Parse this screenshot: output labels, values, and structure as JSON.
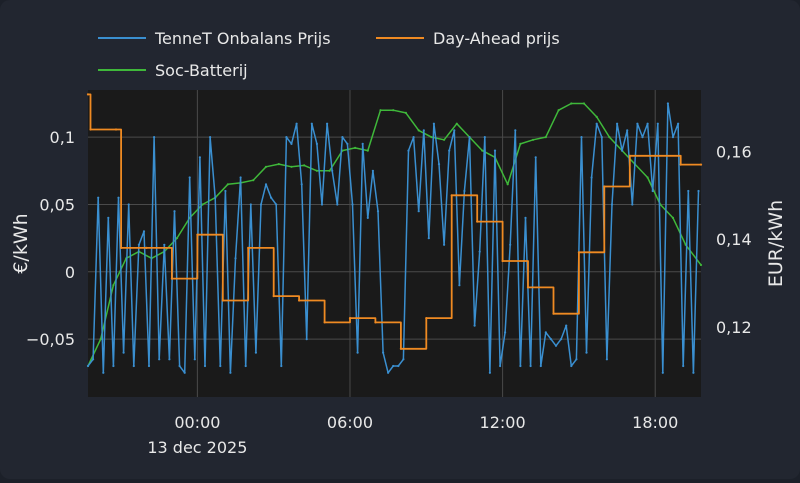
{
  "chart_data": {
    "type": "line",
    "legend": {
      "placement": "top",
      "entries": [
        {
          "name": "TenneT Onbalans Prijs",
          "color": "#3a8fd0"
        },
        {
          "name": "Day-Ahead prijs",
          "color": "#ef8a22"
        },
        {
          "name": "Soc-Batterij",
          "color": "#3fb83a"
        }
      ]
    },
    "x_axis": {
      "ticks": [
        "00:00",
        "06:00",
        "12:00",
        "18:00"
      ],
      "tick_hours": [
        0,
        6,
        12,
        18
      ],
      "date_label": "13 dec 2025",
      "range_hours": [
        -4.3,
        19.8
      ]
    },
    "y_left": {
      "label": "€/kWh",
      "ticks": [
        "0,1",
        "0,05",
        "0",
        "−0,05"
      ],
      "tick_values": [
        0.1,
        0.05,
        0,
        -0.05
      ],
      "range": [
        -0.093,
        0.135
      ]
    },
    "y_right": {
      "label": "EUR/kWh",
      "ticks": [
        "0,16",
        "0,14",
        "0,12"
      ],
      "tick_values": [
        0.16,
        0.14,
        0.12
      ],
      "range": [
        0.104,
        0.174
      ]
    },
    "grid": true,
    "series": [
      {
        "name": "Day-Ahead prijs",
        "axis": "right",
        "step": true,
        "color": "#ef8a22",
        "x": [
          -4.3,
          -4.2,
          -3.2,
          -3.0,
          -2.0,
          -1.0,
          0.0,
          1.0,
          2.0,
          3.0,
          4.0,
          5.0,
          6.0,
          7.0,
          8.0,
          9.0,
          10.0,
          11.0,
          12.0,
          13.0,
          14.0,
          15.0,
          16.0,
          17.0,
          18.0,
          19.0,
          19.8
        ],
        "y": [
          0.173,
          0.165,
          0.165,
          0.138,
          0.138,
          0.131,
          0.141,
          0.126,
          0.138,
          0.127,
          0.126,
          0.121,
          0.122,
          0.121,
          0.115,
          0.122,
          0.15,
          0.144,
          0.135,
          0.129,
          0.123,
          0.137,
          0.152,
          0.159,
          0.159,
          0.157,
          0.157
        ]
      },
      {
        "name": "Soc-Batterij",
        "axis": "left",
        "color": "#3fb83a",
        "x": [
          -4.3,
          -3.8,
          -3.3,
          -2.8,
          -2.3,
          -1.8,
          -1.3,
          -0.8,
          -0.3,
          0.2,
          0.7,
          1.2,
          1.7,
          2.2,
          2.7,
          3.2,
          3.7,
          4.2,
          4.7,
          5.2,
          5.7,
          6.2,
          6.7,
          7.2,
          7.7,
          8.2,
          8.7,
          9.2,
          9.7,
          10.2,
          10.7,
          11.2,
          11.7,
          12.2,
          12.7,
          13.2,
          13.7,
          14.2,
          14.7,
          15.2,
          15.7,
          16.2,
          16.7,
          17.2,
          17.7,
          18.2,
          18.7,
          19.2,
          19.8
        ],
        "y": [
          -0.07,
          -0.05,
          -0.01,
          0.01,
          0.015,
          0.01,
          0.015,
          0.025,
          0.04,
          0.05,
          0.055,
          0.065,
          0.066,
          0.068,
          0.078,
          0.08,
          0.078,
          0.079,
          0.075,
          0.075,
          0.09,
          0.092,
          0.09,
          0.12,
          0.12,
          0.118,
          0.105,
          0.1,
          0.098,
          0.11,
          0.1,
          0.09,
          0.085,
          0.065,
          0.095,
          0.098,
          0.1,
          0.12,
          0.125,
          0.125,
          0.115,
          0.1,
          0.09,
          0.08,
          0.07,
          0.05,
          0.04,
          0.02,
          0.005
        ]
      },
      {
        "name": "TenneT Onbalans Prijs",
        "axis": "left",
        "color": "#3a8fd0",
        "x": [
          -4.3,
          -4.1,
          -3.9,
          -3.7,
          -3.5,
          -3.3,
          -3.1,
          -2.9,
          -2.7,
          -2.5,
          -2.3,
          -2.1,
          -1.9,
          -1.7,
          -1.5,
          -1.3,
          -1.1,
          -0.9,
          -0.7,
          -0.5,
          -0.3,
          -0.1,
          0.1,
          0.3,
          0.5,
          0.7,
          0.9,
          1.1,
          1.3,
          1.5,
          1.7,
          1.9,
          2.1,
          2.3,
          2.5,
          2.7,
          2.9,
          3.1,
          3.3,
          3.5,
          3.7,
          3.9,
          4.1,
          4.3,
          4.5,
          4.7,
          4.9,
          5.1,
          5.3,
          5.5,
          5.7,
          5.9,
          6.1,
          6.3,
          6.5,
          6.7,
          6.9,
          7.1,
          7.3,
          7.5,
          7.7,
          7.9,
          8.1,
          8.3,
          8.5,
          8.7,
          8.9,
          9.1,
          9.3,
          9.5,
          9.7,
          9.9,
          10.1,
          10.3,
          10.5,
          10.7,
          10.9,
          11.1,
          11.3,
          11.5,
          11.7,
          11.9,
          12.1,
          12.3,
          12.5,
          12.7,
          12.9,
          13.1,
          13.3,
          13.5,
          13.7,
          13.9,
          14.1,
          14.3,
          14.5,
          14.7,
          14.9,
          15.1,
          15.3,
          15.5,
          15.7,
          15.9,
          16.1,
          16.3,
          16.5,
          16.7,
          16.9,
          17.1,
          17.3,
          17.5,
          17.7,
          17.9,
          18.1,
          18.3,
          18.5,
          18.7,
          18.9,
          19.1,
          19.3,
          19.5,
          19.7
        ],
        "y": [
          -0.07,
          -0.065,
          0.055,
          -0.075,
          0.04,
          -0.07,
          0.055,
          -0.06,
          0.05,
          -0.07,
          0.02,
          0.03,
          -0.07,
          0.1,
          -0.065,
          0.02,
          -0.065,
          0.045,
          -0.07,
          -0.075,
          0.07,
          -0.065,
          0.085,
          -0.07,
          0.1,
          0.055,
          -0.07,
          0.06,
          -0.075,
          0.01,
          0.07,
          -0.07,
          0.05,
          -0.06,
          0.05,
          0.065,
          0.055,
          0.05,
          -0.07,
          0.1,
          0.095,
          0.11,
          0.065,
          -0.05,
          0.11,
          0.095,
          0.05,
          0.11,
          0.075,
          0.05,
          0.1,
          0.095,
          0.05,
          -0.06,
          0.095,
          0.04,
          0.075,
          0.045,
          -0.06,
          -0.075,
          -0.07,
          -0.07,
          -0.065,
          0.09,
          0.1,
          0.045,
          0.105,
          0.025,
          0.11,
          0.08,
          0.02,
          0.09,
          0.105,
          -0.01,
          0.06,
          0.1,
          -0.04,
          0.015,
          0.1,
          -0.075,
          0.09,
          -0.07,
          -0.045,
          0.02,
          0.105,
          -0.07,
          0.04,
          -0.07,
          0.085,
          -0.07,
          -0.045,
          -0.05,
          -0.055,
          -0.05,
          -0.04,
          -0.07,
          -0.065,
          0.1,
          -0.06,
          0.07,
          0.11,
          0.1,
          -0.065,
          0.05,
          0.11,
          0.09,
          0.105,
          0.05,
          0.11,
          0.1,
          0.11,
          0.06,
          0.11,
          -0.075,
          0.125,
          0.1,
          0.11,
          -0.07,
          0.06,
          -0.075,
          0.06
        ]
      }
    ]
  }
}
